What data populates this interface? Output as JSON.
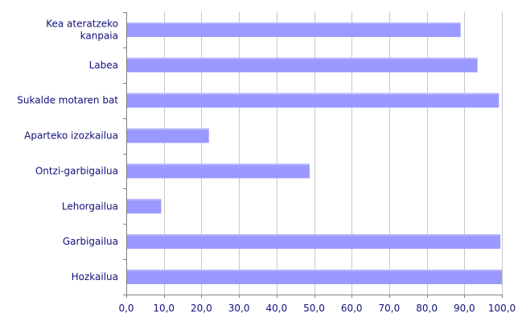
{
  "chart_data": {
    "type": "bar",
    "orientation": "horizontal",
    "categories": [
      "Kea ateratzeko kanpaia",
      "Labea",
      "Sukalde motaren bat",
      "Aparteko izozkailua",
      "Ontzi-garbigailua",
      "Lehorgailua",
      "Garbigailua",
      "Hozkailua"
    ],
    "category_lines": [
      [
        "Kea ateratzeko",
        "kanpaia"
      ],
      [
        "Labea"
      ],
      [
        "Sukalde motaren bat"
      ],
      [
        "Aparteko izozkailua"
      ],
      [
        "Ontzi-garbigailua"
      ],
      [
        "Lehorgailua"
      ],
      [
        "Garbigailua"
      ],
      [
        "Hozkailua"
      ]
    ],
    "values": [
      89.0,
      93.5,
      99.2,
      22.0,
      48.8,
      9.3,
      99.6,
      100.0
    ],
    "xlim": [
      0,
      100
    ],
    "xticks": [
      "0,0",
      "10,0",
      "20,0",
      "30,0",
      "40,0",
      "50,0",
      "60,0",
      "70,0",
      "80,0",
      "90,0",
      "100,0"
    ],
    "title": "",
    "xlabel": "",
    "ylabel": "",
    "grid": "vertical",
    "legend": "none",
    "colors": {
      "bar": "#9999ff",
      "bar_highlight": "#b3b3ff",
      "grid": "#c8c8c8",
      "axis": "#808080",
      "label": "#10107a"
    }
  }
}
